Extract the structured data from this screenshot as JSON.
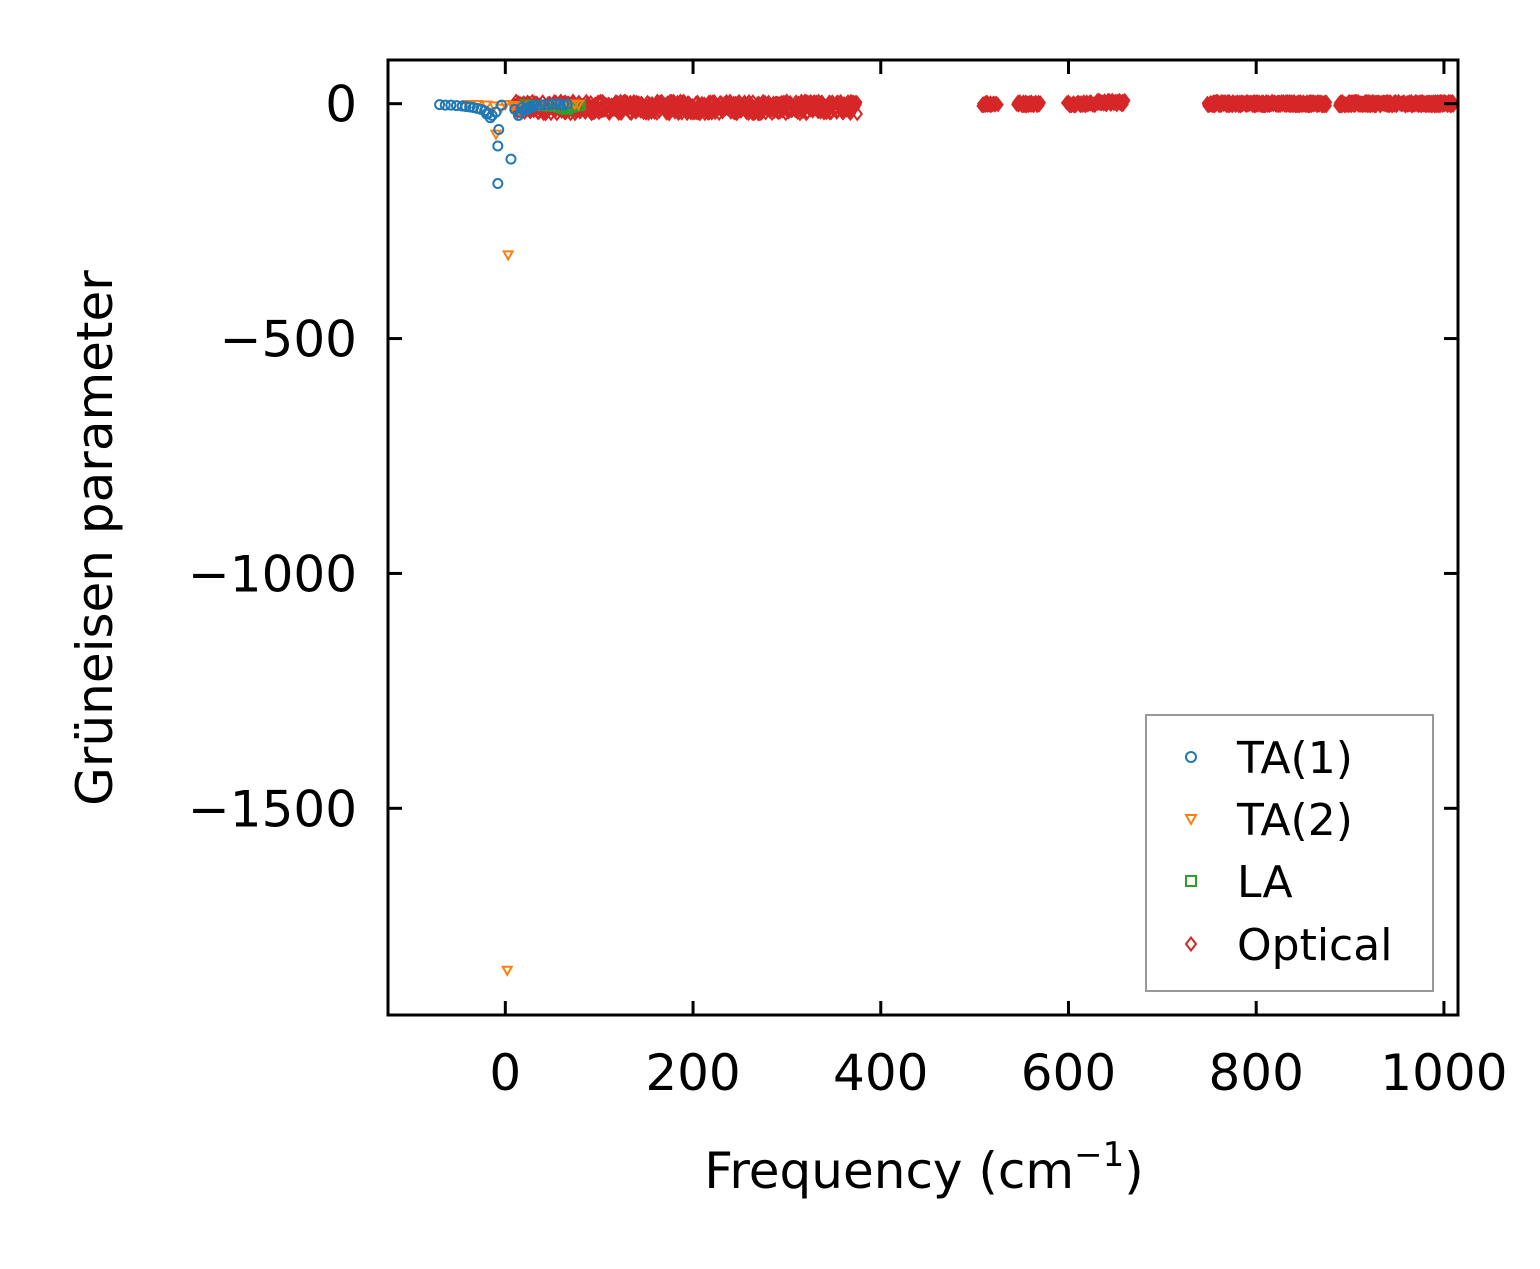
{
  "chart_data": {
    "type": "scatter",
    "title": "",
    "xlabel": "Frequency (cm",
    "xlabel_sup": "−1",
    "xlabel_end": ")",
    "ylabel": "Grüneisen parameter",
    "xlim": [
      -125,
      1015
    ],
    "ylim": [
      -1940,
      93
    ],
    "xticks": [
      0,
      200,
      400,
      600,
      800,
      1000
    ],
    "xtick_labels": [
      "0",
      "200",
      "400",
      "600",
      "800",
      "1000"
    ],
    "yticks": [
      0,
      -500,
      -1000,
      -1500
    ],
    "ytick_labels": [
      "0",
      "−500",
      "−1000",
      "−1500"
    ],
    "grid": false,
    "legend_position": "lower right",
    "series": [
      {
        "name": "TA(1)",
        "marker": "circle",
        "color": "#1f77b4",
        "points": [
          [
            -70,
            -2
          ],
          [
            -64,
            -3
          ],
          [
            -58,
            -3
          ],
          [
            -52,
            -4
          ],
          [
            -46,
            -5
          ],
          [
            -42,
            -6
          ],
          [
            -38,
            -7
          ],
          [
            -34,
            -8
          ],
          [
            -30,
            -10
          ],
          [
            -26,
            -12
          ],
          [
            -22,
            -15
          ],
          [
            -18,
            -20
          ],
          [
            -14,
            -25
          ],
          [
            -10,
            -18
          ],
          [
            -7,
            -55
          ],
          [
            -8,
            -90
          ],
          [
            -8,
            -170
          ],
          [
            -4,
            -3
          ],
          [
            6,
            -118
          ],
          [
            10,
            -12
          ],
          [
            14,
            -25
          ],
          [
            18,
            -8
          ],
          [
            22,
            -10
          ],
          [
            26,
            -6
          ],
          [
            30,
            -4
          ],
          [
            34,
            -3
          ],
          [
            38,
            -3
          ],
          [
            42,
            -2
          ],
          [
            46,
            -2
          ],
          [
            50,
            -1
          ],
          [
            54,
            -1
          ],
          [
            58,
            -1
          ],
          [
            62,
            -2
          ],
          [
            66,
            -1
          ],
          [
            -20,
            -22
          ],
          [
            -16,
            -30
          ],
          [
            16,
            -18
          ],
          [
            20,
            -14
          ],
          [
            24,
            -12
          ],
          [
            28,
            -8
          ]
        ]
      },
      {
        "name": "TA(2)",
        "marker": "triangle_down",
        "color": "#ff7f0e",
        "points": [
          [
            -40,
            -2
          ],
          [
            -30,
            -2
          ],
          [
            -20,
            -3
          ],
          [
            -12,
            -5
          ],
          [
            -10,
            -65
          ],
          [
            -5,
            -10
          ],
          [
            0,
            -2
          ],
          [
            3,
            -322
          ],
          [
            2,
            -1845
          ],
          [
            8,
            -4
          ],
          [
            12,
            -8
          ],
          [
            16,
            -20
          ],
          [
            20,
            -6
          ],
          [
            28,
            -4
          ],
          [
            36,
            -3
          ],
          [
            44,
            -2
          ],
          [
            52,
            -2
          ],
          [
            60,
            -1
          ],
          [
            68,
            -1
          ],
          [
            74,
            -1
          ],
          [
            78,
            -2
          ]
        ]
      },
      {
        "name": "LA",
        "marker": "square",
        "color": "#2ca02c",
        "points": [
          [
            20,
            -2
          ],
          [
            28,
            -3
          ],
          [
            36,
            -4
          ],
          [
            44,
            -5
          ],
          [
            52,
            -6
          ],
          [
            58,
            -8
          ],
          [
            62,
            -10
          ],
          [
            66,
            -12
          ],
          [
            70,
            -8
          ],
          [
            74,
            -6
          ],
          [
            78,
            -4
          ],
          [
            80,
            -3
          ]
        ]
      },
      {
        "name": "Optical",
        "marker": "diamond",
        "color": "#d62728",
        "ranges": [
          {
            "x": [
              10,
              375
            ],
            "y": [
              -22,
              6
            ]
          },
          {
            "x": [
              508,
              525
            ],
            "y": [
              -5,
              5
            ]
          },
          {
            "x": [
              545,
              570
            ],
            "y": [
              -5,
              5
            ]
          },
          {
            "x": [
              598,
              628
            ],
            "y": [
              -5,
              5
            ]
          },
          {
            "x": [
              630,
              660
            ],
            "y": [
              -3,
              8
            ]
          },
          {
            "x": [
              748,
              875
            ],
            "y": [
              -5,
              5
            ]
          },
          {
            "x": [
              888,
              1010
            ],
            "y": [
              -5,
              5
            ]
          }
        ],
        "points_per_range": [
          700,
          30,
          40,
          50,
          50,
          380,
          380
        ]
      }
    ]
  }
}
